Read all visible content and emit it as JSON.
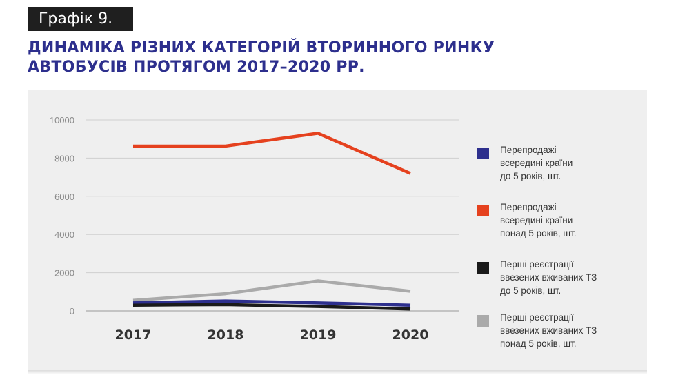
{
  "header": {
    "tag": "Графік 9.",
    "title_line1": "ДИНАМІКА РІЗНИХ КАТЕГОРІЙ ВТОРИННОГО РИНКУ",
    "title_line2": "АВТОБУСІВ ПРОТЯГОМ 2017–2020 РР."
  },
  "chart_data": {
    "type": "line",
    "x": [
      "2017",
      "2018",
      "2019",
      "2020"
    ],
    "ylim": [
      0,
      10000
    ],
    "yticks": [
      0,
      2000,
      4000,
      6000,
      8000,
      10000
    ],
    "grid": true,
    "legend_position": "right",
    "series": [
      {
        "name_lines": [
          "Перепродажі",
          "всередині країни",
          "до 5 років, шт."
        ],
        "color": "#2d2f8d",
        "values": [
          420,
          520,
          420,
          300
        ]
      },
      {
        "name_lines": [
          "Перепродажі",
          "всередині країни",
          "понад 5 років, шт."
        ],
        "color": "#e5411e",
        "values": [
          8630,
          8630,
          9300,
          7200
        ]
      },
      {
        "name_lines": [
          "Перші реєстрації",
          "ввезених вживаних ТЗ",
          "до 5 років, шт."
        ],
        "color": "#1a1a1a",
        "values": [
          300,
          330,
          230,
          100
        ]
      },
      {
        "name_lines": [
          "Перші реєстрації",
          "ввезених вживаних ТЗ",
          "понад 5 років, шт."
        ],
        "color": "#aaaaaa",
        "values": [
          550,
          900,
          1570,
          1030
        ]
      }
    ]
  }
}
